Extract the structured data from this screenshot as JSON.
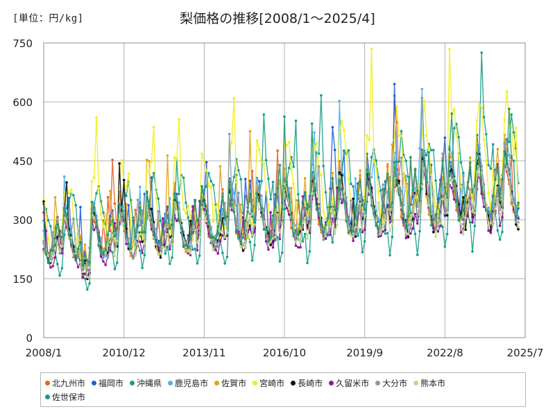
{
  "header": {
    "unit_label": "[単位：円/kg]",
    "title": "梨価格の推移[2008/1～2025/4]"
  },
  "chart_data": {
    "type": "line",
    "title": "梨価格の推移[2008/1～2025/4]",
    "unit": "[単位：円/kg]",
    "xlabel": "",
    "ylabel": "",
    "ylim": [
      0,
      750
    ],
    "yticks": [
      0,
      150,
      300,
      450,
      600,
      750
    ],
    "xlim": [
      "2008/1",
      "2025/7"
    ],
    "xticks": [
      "2008/1",
      "2010/12",
      "2013/11",
      "2016/10",
      "2019/9",
      "2022/8",
      "2025/7"
    ],
    "grid": true,
    "legend_position": "bottom",
    "series": [
      {
        "name": "北九州市",
        "color": "#e8622a",
        "base": 262,
        "amp": 1.05,
        "peak": 8,
        "seed": 3
      },
      {
        "name": "福岡市",
        "color": "#1f5fd6",
        "base": 270,
        "amp": 1.08,
        "peak": 8,
        "seed": 7
      },
      {
        "name": "沖縄県",
        "color": "#16a086",
        "base": 270,
        "amp": 1.35,
        "peak": 0,
        "seed": 11
      },
      {
        "name": "鹿児島市",
        "color": "#52b4ee",
        "base": 258,
        "amp": 1.0,
        "peak": 9,
        "seed": 13
      },
      {
        "name": "佐賀市",
        "color": "#e3a21a",
        "base": 265,
        "amp": 1.1,
        "peak": 8,
        "seed": 17
      },
      {
        "name": "宮崎市",
        "color": "#f2ee1a",
        "base": 300,
        "amp": 1.4,
        "peak": 10,
        "seed": 19
      },
      {
        "name": "長崎市",
        "color": "#111111",
        "base": 245,
        "amp": 1.0,
        "peak": 9,
        "seed": 23
      },
      {
        "name": "久留米市",
        "color": "#8a1a9b",
        "base": 232,
        "amp": 0.95,
        "peak": 9,
        "seed": 29
      },
      {
        "name": "大分市",
        "color": "#8899aa",
        "base": 250,
        "amp": 1.0,
        "peak": 9,
        "seed": 31
      },
      {
        "name": "熊本市",
        "color": "#c3d987",
        "base": 238,
        "amp": 0.95,
        "peak": 9,
        "seed": 37
      },
      {
        "name": "佐世保市",
        "color": "#1f9a72",
        "base": 262,
        "amp": 1.05,
        "peak": 8,
        "seed": 41
      }
    ],
    "trend": {
      "start_month": "2008/1",
      "end_month": "2025/4",
      "growth": 1.55
    }
  }
}
